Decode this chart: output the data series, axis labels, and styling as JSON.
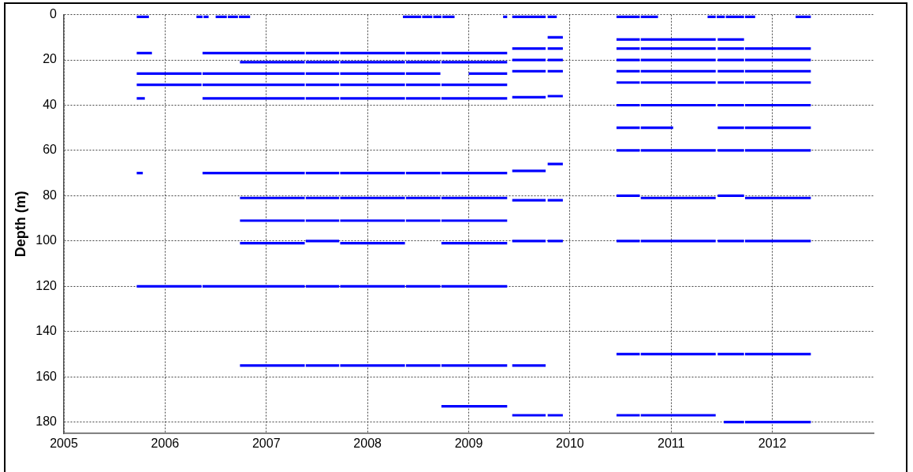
{
  "chart_data": {
    "type": "line",
    "ylabel": "Depth (m)",
    "xlim": [
      2005,
      2013
    ],
    "xticks": [
      2005,
      2006,
      2007,
      2008,
      2009,
      2010,
      2011,
      2012
    ],
    "ylim": [
      185,
      0
    ],
    "yticks": [
      0,
      20,
      40,
      60,
      80,
      100,
      120,
      140,
      160,
      180
    ],
    "grid": true,
    "marker": "none",
    "color": "#0000ff",
    "series": [
      {
        "x": [
          2005.72,
          2005.84
        ],
        "values": [
          1,
          1
        ]
      },
      {
        "x": [
          2006.31,
          2006.37,
          null,
          2006.38,
          2006.43
        ],
        "values": [
          1,
          1,
          null,
          1,
          1
        ]
      },
      {
        "x": [
          2006.5,
          2006.61,
          null,
          2006.62,
          2006.72,
          null,
          2006.73,
          2006.84
        ],
        "values": [
          1,
          1,
          null,
          1,
          1,
          null,
          1,
          1
        ]
      },
      {
        "x": [
          2008.35,
          2008.53,
          null,
          2008.54,
          2008.64,
          null,
          2008.65,
          2008.73,
          null,
          2008.74,
          2008.86
        ],
        "values": [
          1,
          1,
          null,
          1,
          1,
          null,
          1,
          1,
          null,
          1,
          1
        ]
      },
      {
        "x": [
          2009.34,
          2009.38
        ],
        "values": [
          1,
          1
        ]
      },
      {
        "x": [
          2009.43,
          2009.76,
          null,
          2009.78,
          2009.87
        ],
        "values": [
          1,
          1,
          null,
          1,
          1
        ]
      },
      {
        "x": [
          2010.46,
          2010.69,
          null,
          2010.7,
          2010.87
        ],
        "values": [
          1,
          1,
          null,
          1,
          1
        ]
      },
      {
        "x": [
          2011.36,
          2011.44,
          null,
          2011.45,
          2011.53,
          null,
          2011.54,
          2011.72,
          null,
          2011.73,
          2011.83
        ],
        "values": [
          1,
          1,
          null,
          1,
          1,
          null,
          1,
          1,
          null,
          1,
          1
        ]
      },
      {
        "x": [
          2012.23,
          2012.38
        ],
        "values": [
          1,
          1
        ]
      },
      {
        "x": [
          2009.78,
          2009.93
        ],
        "values": [
          10,
          10
        ]
      },
      {
        "x": [
          2010.46,
          2010.69,
          null,
          2010.7,
          2011.44,
          null,
          2011.46,
          2011.72
        ],
        "values": [
          11,
          11,
          null,
          11,
          11,
          null,
          11,
          11
        ]
      },
      {
        "x": [
          2009.43,
          2009.76,
          null,
          2009.78,
          2009.93
        ],
        "values": [
          15,
          15,
          null,
          15,
          15
        ]
      },
      {
        "x": [
          2010.46,
          2010.69,
          null,
          2010.7,
          2011.44,
          null,
          2011.46,
          2011.72,
          null,
          2011.73,
          2012.38
        ],
        "values": [
          15,
          15,
          null,
          15,
          15,
          null,
          15,
          15,
          null,
          15,
          15
        ]
      },
      {
        "x": [
          2005.72,
          2005.87
        ],
        "values": [
          17,
          17
        ]
      },
      {
        "x": [
          2006.37,
          2007.38,
          null,
          2007.39,
          2007.72,
          null,
          2007.73,
          2008.37,
          null,
          2008.38,
          2008.72,
          null,
          2008.73,
          2009.38
        ],
        "values": [
          17,
          17,
          null,
          17,
          17,
          null,
          17,
          17,
          null,
          17,
          17,
          null,
          17,
          17
        ]
      },
      {
        "x": [
          2009.43,
          2009.76,
          null,
          2009.78,
          2009.93
        ],
        "values": [
          20,
          20,
          null,
          20,
          20
        ]
      },
      {
        "x": [
          2010.46,
          2010.69,
          null,
          2010.7,
          2011.44,
          null,
          2011.46,
          2011.72,
          null,
          2011.73,
          2012.38
        ],
        "values": [
          20,
          20,
          null,
          20,
          20,
          null,
          20,
          20,
          null,
          20,
          20
        ]
      },
      {
        "x": [
          2006.74,
          2007.38,
          null,
          2007.39,
          2007.72,
          null,
          2007.73,
          2008.37,
          null,
          2008.38,
          2008.72,
          null,
          2008.73,
          2009.38
        ],
        "values": [
          21,
          21,
          null,
          21,
          21,
          null,
          21,
          21,
          null,
          21,
          21,
          null,
          21,
          21
        ]
      },
      {
        "x": [
          2009.43,
          2009.76,
          null,
          2009.78,
          2009.93
        ],
        "values": [
          25,
          25,
          null,
          25,
          25
        ]
      },
      {
        "x": [
          2010.46,
          2010.69,
          null,
          2010.7,
          2011.44,
          null,
          2011.46,
          2011.72,
          null,
          2011.73,
          2012.38
        ],
        "values": [
          25,
          25,
          null,
          25,
          25,
          null,
          25,
          25,
          null,
          25,
          25
        ]
      },
      {
        "x": [
          2005.72,
          2006.36,
          null,
          2006.37,
          2007.38,
          null,
          2007.39,
          2007.72,
          null,
          2007.73,
          2008.37,
          null,
          2008.38,
          2008.72
        ],
        "values": [
          26,
          26,
          null,
          26,
          26,
          null,
          26,
          26,
          null,
          26,
          26,
          null,
          26,
          26
        ]
      },
      {
        "x": [
          2009.0,
          2009.38
        ],
        "values": [
          26,
          26
        ]
      },
      {
        "x": [
          2010.46,
          2010.69,
          null,
          2010.7,
          2011.44,
          null,
          2011.46,
          2011.72,
          null,
          2011.73,
          2012.38
        ],
        "values": [
          30,
          30,
          null,
          30,
          30,
          null,
          30,
          30,
          null,
          30,
          30
        ]
      },
      {
        "x": [
          2005.72,
          2006.36,
          null,
          2006.37,
          2007.38,
          null,
          2007.39,
          2007.72,
          null,
          2007.73,
          2008.37,
          null,
          2008.38,
          2008.72,
          null,
          2008.73,
          2009.38
        ],
        "values": [
          31,
          31,
          null,
          31,
          31,
          null,
          31,
          31,
          null,
          31,
          31,
          null,
          31,
          31,
          null,
          31,
          31
        ]
      },
      {
        "x": [
          2009.43,
          2009.76
        ],
        "values": [
          36.5,
          36.5
        ]
      },
      {
        "x": [
          2009.78,
          2009.93
        ],
        "values": [
          36,
          36
        ]
      },
      {
        "x": [
          2005.72,
          2005.8
        ],
        "values": [
          37,
          37
        ]
      },
      {
        "x": [
          2006.37,
          2007.38,
          null,
          2007.39,
          2007.72,
          null,
          2007.73,
          2008.37,
          null,
          2008.38,
          2008.72,
          null,
          2008.73,
          2009.38
        ],
        "values": [
          37,
          37,
          null,
          37,
          37,
          null,
          37,
          37,
          null,
          37,
          37,
          null,
          37,
          37
        ]
      },
      {
        "x": [
          2010.46,
          2010.69,
          null,
          2010.7,
          2011.44,
          null,
          2011.46,
          2011.72,
          null,
          2011.73,
          2012.38
        ],
        "values": [
          40,
          40,
          null,
          40,
          40,
          null,
          40,
          40,
          null,
          40,
          40
        ]
      },
      {
        "x": [
          2010.46,
          2010.69,
          null,
          2010.7,
          2011.02
        ],
        "values": [
          50,
          50,
          null,
          50,
          50
        ]
      },
      {
        "x": [
          2011.46,
          2011.72,
          null,
          2011.73,
          2012.38
        ],
        "values": [
          50,
          50,
          null,
          50,
          50
        ]
      },
      {
        "x": [
          2010.46,
          2010.69,
          null,
          2010.7,
          2011.44,
          null,
          2011.46,
          2011.72,
          null,
          2011.73,
          2012.38
        ],
        "values": [
          60,
          60,
          null,
          60,
          60,
          null,
          60,
          60,
          null,
          60,
          60
        ]
      },
      {
        "x": [
          2009.78,
          2009.93
        ],
        "values": [
          66,
          66
        ]
      },
      {
        "x": [
          2009.43,
          2009.76
        ],
        "values": [
          69,
          69
        ]
      },
      {
        "x": [
          2005.72,
          2005.78
        ],
        "values": [
          70,
          70
        ]
      },
      {
        "x": [
          2006.37,
          2007.38,
          null,
          2007.39,
          2007.72,
          null,
          2007.73,
          2008.37,
          null,
          2008.38,
          2008.72,
          null,
          2008.73,
          2009.38
        ],
        "values": [
          70,
          70,
          null,
          70,
          70,
          null,
          70,
          70,
          null,
          70,
          70,
          null,
          70,
          70
        ]
      },
      {
        "x": [
          2010.46,
          2010.69
        ],
        "values": [
          80,
          80
        ]
      },
      {
        "x": [
          2011.46,
          2011.72
        ],
        "values": [
          80,
          80
        ]
      },
      {
        "x": [
          2006.74,
          2007.38,
          null,
          2007.39,
          2007.72,
          null,
          2007.73,
          2008.37,
          null,
          2008.38,
          2008.72,
          null,
          2008.73,
          2009.38
        ],
        "values": [
          81,
          81,
          null,
          81,
          81,
          null,
          81,
          81,
          null,
          81,
          81,
          null,
          81,
          81
        ]
      },
      {
        "x": [
          2010.7,
          2011.44
        ],
        "values": [
          81,
          81
        ]
      },
      {
        "x": [
          2011.73,
          2012.38
        ],
        "values": [
          81,
          81
        ]
      },
      {
        "x": [
          2009.43,
          2009.76,
          null,
          2009.78,
          2009.93
        ],
        "values": [
          82,
          82,
          null,
          82,
          82
        ]
      },
      {
        "x": [
          2006.74,
          2007.38,
          null,
          2007.39,
          2007.72,
          null,
          2007.73,
          2008.37,
          null,
          2008.38,
          2008.72,
          null,
          2008.73,
          2009.38
        ],
        "values": [
          91,
          91,
          null,
          91,
          91,
          null,
          91,
          91,
          null,
          91,
          91,
          null,
          91,
          91
        ]
      },
      {
        "x": [
          2007.39,
          2007.72
        ],
        "values": [
          100,
          100
        ]
      },
      {
        "x": [
          2009.43,
          2009.76,
          null,
          2009.78,
          2009.93
        ],
        "values": [
          100,
          100,
          null,
          100,
          100
        ]
      },
      {
        "x": [
          2010.46,
          2010.69,
          null,
          2010.7,
          2011.44,
          null,
          2011.46,
          2011.72,
          null,
          2011.73,
          2012.38
        ],
        "values": [
          100,
          100,
          null,
          100,
          100,
          null,
          100,
          100,
          null,
          100,
          100
        ]
      },
      {
        "x": [
          2006.74,
          2007.38
        ],
        "values": [
          101,
          101
        ]
      },
      {
        "x": [
          2007.73,
          2008.37
        ],
        "values": [
          101,
          101
        ]
      },
      {
        "x": [
          2008.73,
          2009.38
        ],
        "values": [
          101,
          101
        ]
      },
      {
        "x": [
          2005.72,
          2006.36,
          null,
          2006.37,
          2007.38,
          null,
          2007.39,
          2007.72,
          null,
          2007.73,
          2008.37,
          null,
          2008.38,
          2008.72,
          null,
          2008.73,
          2009.38
        ],
        "values": [
          120,
          120,
          null,
          120,
          120,
          null,
          120,
          120,
          null,
          120,
          120,
          null,
          120,
          120,
          null,
          120,
          120
        ]
      },
      {
        "x": [
          2010.46,
          2010.69,
          null,
          2010.7,
          2011.44,
          null,
          2011.46,
          2011.72,
          null,
          2011.73,
          2012.38
        ],
        "values": [
          150,
          150,
          null,
          150,
          150,
          null,
          150,
          150,
          null,
          150,
          150
        ]
      },
      {
        "x": [
          2006.74,
          2007.38,
          null,
          2007.39,
          2007.72,
          null,
          2007.73,
          2008.37,
          null,
          2008.38,
          2008.72,
          null,
          2008.73,
          2009.38
        ],
        "values": [
          155,
          155,
          null,
          155,
          155,
          null,
          155,
          155,
          null,
          155,
          155,
          null,
          155,
          155
        ]
      },
      {
        "x": [
          2009.43,
          2009.76
        ],
        "values": [
          155,
          155
        ]
      },
      {
        "x": [
          2008.73,
          2009.38
        ],
        "values": [
          173,
          173
        ]
      },
      {
        "x": [
          2009.43,
          2009.76,
          null,
          2009.78,
          2009.93
        ],
        "values": [
          177,
          177,
          null,
          177,
          177
        ]
      },
      {
        "x": [
          2010.46,
          2010.69,
          null,
          2010.7,
          2011.44
        ],
        "values": [
          177,
          177,
          null,
          177,
          177
        ]
      },
      {
        "x": [
          2011.52,
          2011.72,
          null,
          2011.73,
          2012.38
        ],
        "values": [
          180,
          180,
          null,
          180,
          180
        ]
      }
    ]
  }
}
